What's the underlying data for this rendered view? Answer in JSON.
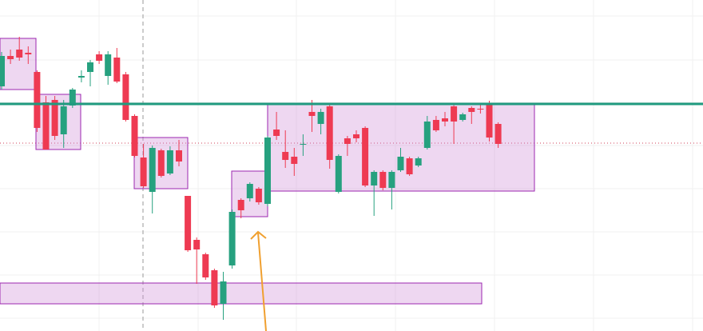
{
  "chart_data": {
    "type": "candlestick",
    "open": [
      306,
      344,
      352,
      348,
      324,
      286,
      289,
      246,
      282,
      317,
      324,
      346,
      319,
      342,
      321,
      269,
      217,
      174,
      226,
      197,
      226,
      169,
      114,
      96,
      76,
      34,
      82,
      164,
      166,
      178,
      159,
      252,
      224,
      218,
      233,
      274,
      259,
      281,
      174,
      241,
      246,
      254,
      182,
      199,
      179,
      201,
      216,
      207,
      229,
      264,
      266,
      281,
      264,
      279,
      278,
      284,
      259
    ],
    "high": [
      349,
      352,
      368,
      356,
      326,
      294,
      294,
      289,
      304,
      326,
      339,
      350,
      350,
      354,
      324,
      271,
      234,
      232,
      228,
      231,
      239,
      169,
      117,
      98,
      78,
      74,
      152,
      166,
      186,
      180,
      244,
      274,
      251,
      229,
      246,
      289,
      278,
      283,
      221,
      244,
      251,
      256,
      201,
      201,
      201,
      229,
      218,
      218,
      269,
      269,
      274,
      283,
      273,
      281,
      284,
      288,
      261
    ],
    "low": [
      302,
      334,
      338,
      334,
      249,
      227,
      239,
      229,
      279,
      311,
      306,
      334,
      308,
      310,
      262,
      217,
      179,
      147,
      192,
      195,
      206,
      99,
      59,
      64,
      29,
      14,
      78,
      141,
      162,
      158,
      156,
      239,
      204,
      194,
      219,
      249,
      246,
      203,
      172,
      219,
      236,
      180,
      144,
      176,
      152,
      199,
      194,
      205,
      227,
      249,
      256,
      234,
      262,
      259,
      272,
      237,
      229
    ],
    "close": [
      344,
      340,
      342,
      346,
      254,
      227,
      244,
      281,
      302,
      319,
      336,
      338,
      346,
      312,
      264,
      219,
      181,
      229,
      194,
      226,
      212,
      101,
      102,
      67,
      32,
      62,
      149,
      151,
      184,
      161,
      242,
      244,
      214,
      209,
      234,
      269,
      274,
      214,
      219,
      234,
      241,
      182,
      199,
      179,
      199,
      218,
      196,
      216,
      262,
      251,
      262,
      262,
      271,
      274,
      277,
      242,
      234
    ],
    "ylim": [
      0,
      414
    ],
    "up_color": "#26a17f",
    "down_color": "#ee3a52"
  }
}
